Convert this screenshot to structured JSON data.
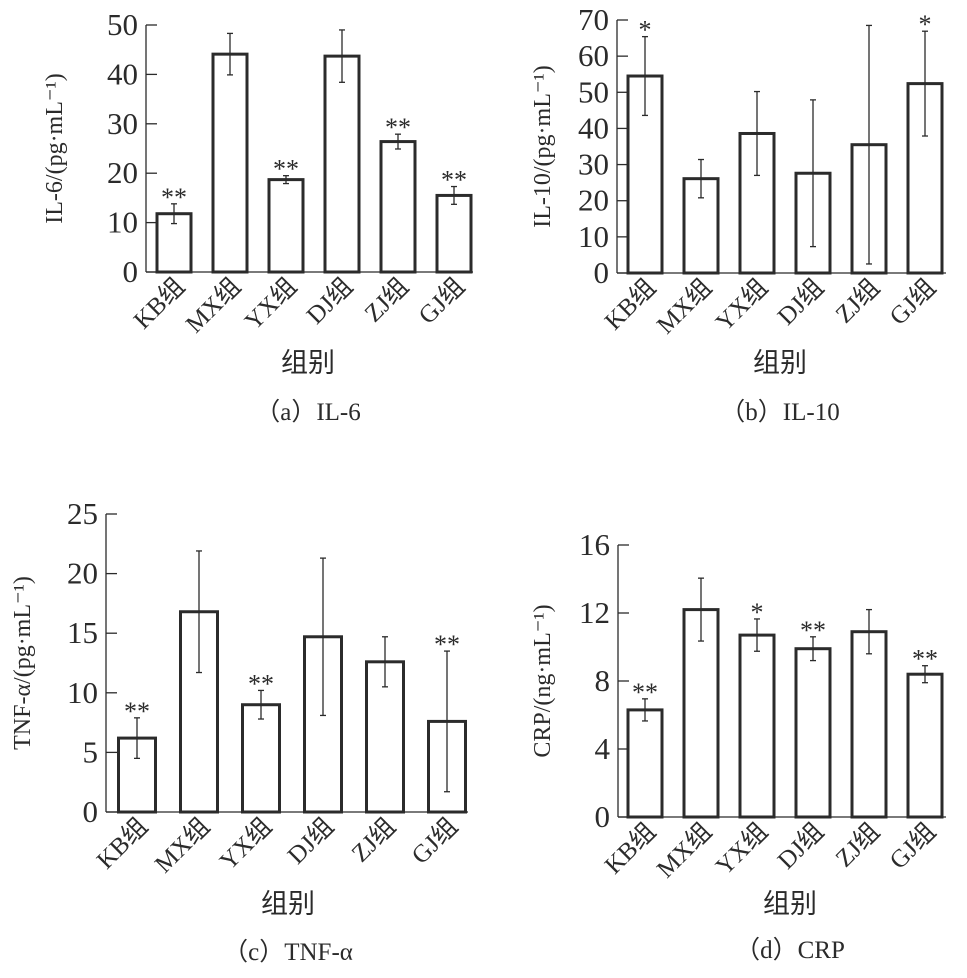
{
  "chart_data": [
    {
      "type": "bar",
      "title": "（a）IL-6",
      "xlabel": "组别",
      "ylabel": "IL-6/(pg·mL⁻¹)",
      "ylim": [
        0,
        50
      ],
      "yticks": [
        0,
        10,
        20,
        30,
        40,
        50
      ],
      "categories": [
        "KB组",
        "MX组",
        "YX组",
        "DJ组",
        "ZJ组",
        "GJ组"
      ],
      "values": [
        11.8,
        44.1,
        18.7,
        43.7,
        26.4,
        15.5
      ],
      "errors": [
        2.0,
        4.2,
        0.8,
        5.3,
        1.5,
        1.8
      ],
      "significance": [
        "**",
        "",
        "**",
        "",
        "**",
        "**"
      ]
    },
    {
      "type": "bar",
      "title": "（b）IL-10",
      "xlabel": "组别",
      "ylabel": "IL-10/(pg·mL⁻¹)",
      "ylim": [
        0,
        70
      ],
      "yticks": [
        0,
        10,
        20,
        30,
        40,
        50,
        60,
        70
      ],
      "categories": [
        "KB组",
        "MX组",
        "YX组",
        "DJ组",
        "ZJ组",
        "GJ组"
      ],
      "values": [
        54.5,
        26.1,
        38.6,
        27.6,
        35.5,
        52.4
      ],
      "errors": [
        10.9,
        5.3,
        11.6,
        20.3,
        33.0,
        14.5
      ],
      "significance": [
        "*",
        "",
        "",
        "",
        "",
        "*"
      ]
    },
    {
      "type": "bar",
      "title": "（c）TNF-α",
      "xlabel": "组别",
      "ylabel": "TNF-α/(pg·mL⁻¹)",
      "ylim": [
        0,
        25
      ],
      "yticks": [
        0,
        5,
        10,
        15,
        20,
        25
      ],
      "categories": [
        "KB组",
        "MX组",
        "YX组",
        "DJ组",
        "ZJ组",
        "GJ组"
      ],
      "values": [
        6.2,
        16.8,
        9.0,
        14.7,
        12.6,
        7.6
      ],
      "errors": [
        1.7,
        5.1,
        1.2,
        6.6,
        2.1,
        5.9
      ],
      "significance": [
        "**",
        "",
        "**",
        "",
        "",
        "**"
      ]
    },
    {
      "type": "bar",
      "title": "（d）CRP",
      "xlabel": "组别",
      "ylabel": "CRP/(ng·mL⁻¹)",
      "ylim": [
        0,
        16
      ],
      "yticks": [
        0,
        4,
        8,
        12,
        16
      ],
      "categories": [
        "KB组",
        "MX组",
        "YX组",
        "DJ组",
        "ZJ组",
        "GJ组"
      ],
      "values": [
        6.3,
        12.2,
        10.7,
        9.9,
        10.9,
        8.4
      ],
      "errors": [
        0.65,
        1.85,
        0.95,
        0.7,
        1.3,
        0.5
      ],
      "significance": [
        "**",
        "",
        "*",
        "**",
        "",
        "**"
      ]
    }
  ],
  "colors": {
    "ink": "#2b2b2b",
    "bar_fill": "#ffffff"
  }
}
